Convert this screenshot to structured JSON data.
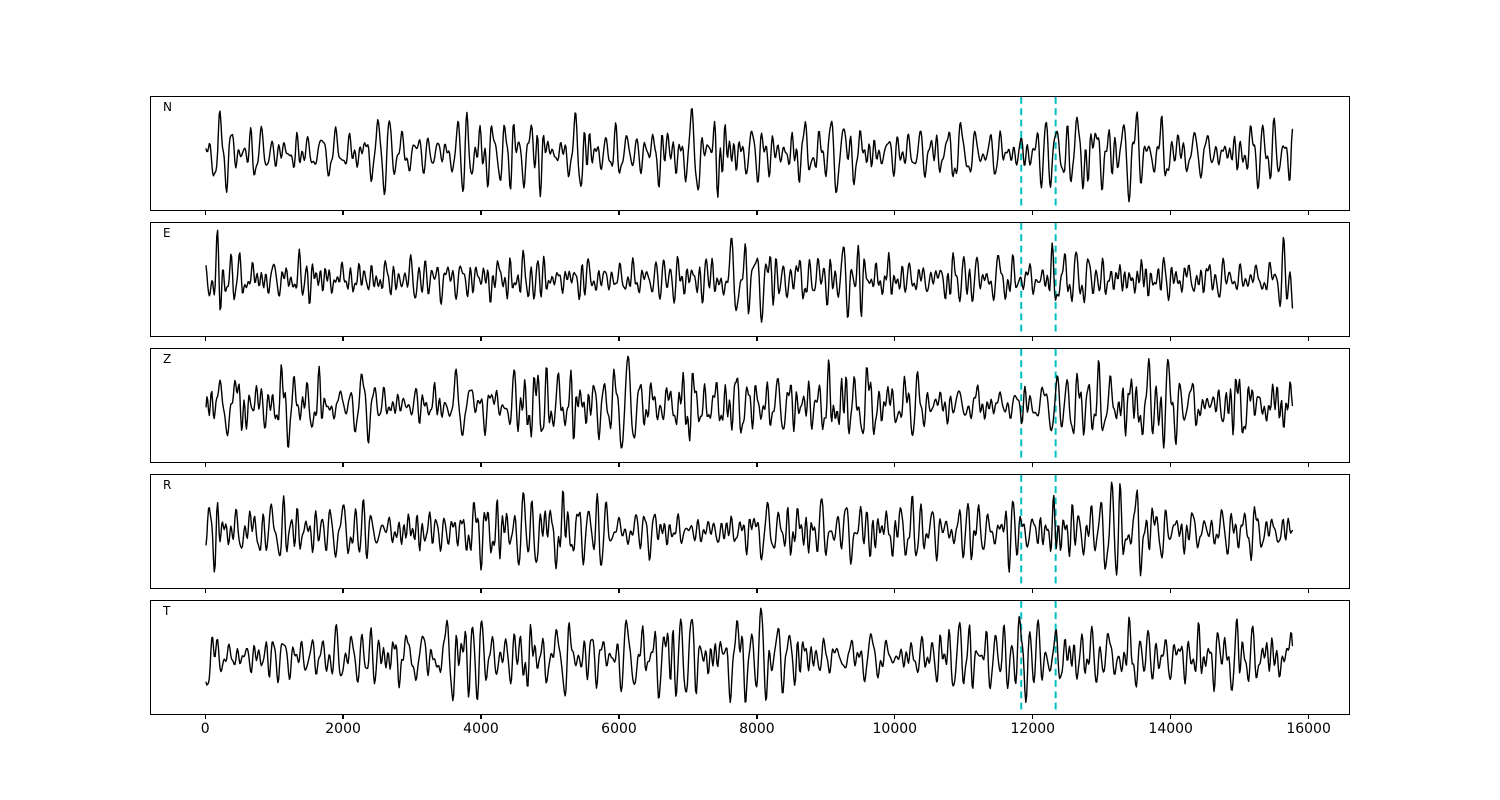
{
  "figure": {
    "background": "#ffffff"
  },
  "chart_data": {
    "type": "line",
    "title": "",
    "xlabel": "",
    "ylabel": "",
    "grid": false,
    "legend": null,
    "panels": [
      {
        "label": "N",
        "seed": 11
      },
      {
        "label": "E",
        "seed": 47
      },
      {
        "label": "Z",
        "seed": 83
      },
      {
        "label": "R",
        "seed": 129
      },
      {
        "label": "T",
        "seed": 211
      }
    ],
    "x_ticks": [
      0,
      2000,
      4000,
      6000,
      8000,
      10000,
      12000,
      14000,
      16000
    ],
    "xlim": [
      -800,
      16600
    ],
    "trace_x_range": [
      0,
      15800
    ],
    "sample_step": 12,
    "dominant_period": 140,
    "noise_period_band": [
      60,
      340
    ],
    "marker_lines_x": [
      11850,
      12350
    ],
    "marker_line_style": "dashed",
    "marker_color": "#00bfbf",
    "trace_color": "#000000",
    "trace_linewidth": 1.4
  }
}
